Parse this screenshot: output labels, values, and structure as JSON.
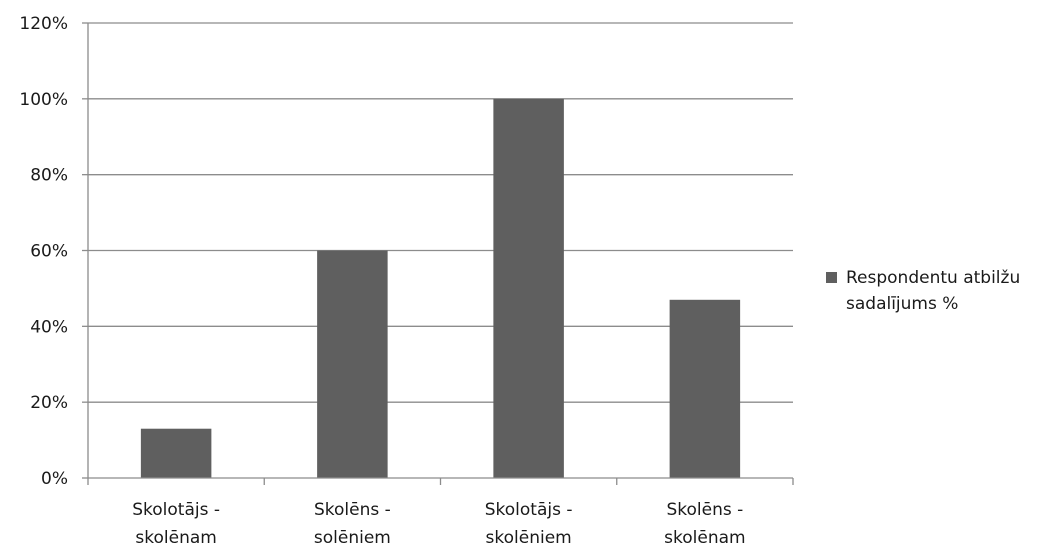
{
  "chart_data": {
    "type": "bar",
    "categories": [
      [
        "Skolotājs -",
        "skolēnam"
      ],
      [
        "Skolēns -",
        "solēniem"
      ],
      [
        "Skolotājs -",
        "skolēniem"
      ],
      [
        "Skolēns -",
        "skolēnam"
      ]
    ],
    "series": [
      {
        "name": "Respondentu atbilžu sadalījums %",
        "name_lines": [
          "Respondentu atbilžu",
          "sadalījums %"
        ],
        "values": [
          13,
          60,
          100,
          47
        ],
        "color": "#5f5f5f"
      }
    ],
    "yticks": [
      "0%",
      "20%",
      "40%",
      "60%",
      "80%",
      "100%",
      "120%"
    ],
    "ylim": [
      0,
      120
    ],
    "grid": true,
    "legend_position": "right",
    "colors": {
      "grid": "#8c8c8c",
      "axis": "#8c8c8c"
    }
  }
}
